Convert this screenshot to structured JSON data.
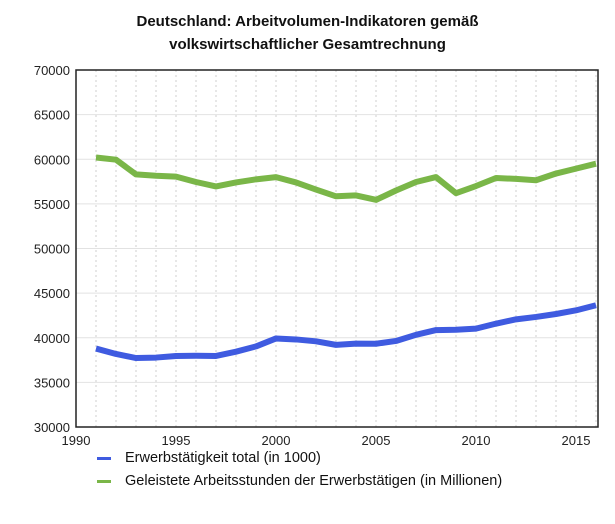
{
  "chart_data": {
    "type": "line",
    "title": "Deutschland: Arbeitvolumen-Indikatoren gemäß volkswirtschaftlicher Gesamtrechnung",
    "title_lines": [
      "Deutschland: Arbeitvolumen-Indikatoren gemäß",
      "volkswirtschaftlicher Gesamtrechnung"
    ],
    "xlabel": "",
    "ylabel": "",
    "xlim": [
      1990,
      2016
    ],
    "ylim": [
      30000,
      70000
    ],
    "xticks": [
      1990,
      1995,
      2000,
      2005,
      2010,
      2015
    ],
    "yticks": [
      30000,
      35000,
      40000,
      45000,
      50000,
      55000,
      60000,
      65000,
      70000
    ],
    "grid": true,
    "legend_position": "bottom",
    "x": [
      1991,
      1992,
      1993,
      1994,
      1995,
      1996,
      1997,
      1998,
      1999,
      2000,
      2001,
      2002,
      2003,
      2004,
      2005,
      2006,
      2007,
      2008,
      2009,
      2010,
      2011,
      2012,
      2013,
      2014,
      2015,
      2016
    ],
    "series": [
      {
        "name": "Erwerbstätigkeit total (in 1000)",
        "color": "#3f5be0",
        "values": [
          38790,
          38180,
          37730,
          37780,
          37960,
          37980,
          37960,
          38440,
          39030,
          39920,
          39810,
          39600,
          39200,
          39340,
          39330,
          39640,
          40330,
          40860,
          40890,
          41020,
          41580,
          42060,
          42330,
          42660,
          43070,
          43640
        ]
      },
      {
        "name": "Geleistete Arbeitsstunden der Erwerbstätigen (in Millionen)",
        "color": "#7ab648",
        "values": [
          60200,
          59950,
          58300,
          58150,
          58050,
          57450,
          56950,
          57400,
          57750,
          58000,
          57400,
          56600,
          55850,
          55950,
          55450,
          56500,
          57450,
          58000,
          56200,
          57000,
          57900,
          57800,
          57650,
          58400,
          58950,
          59500
        ]
      }
    ]
  }
}
